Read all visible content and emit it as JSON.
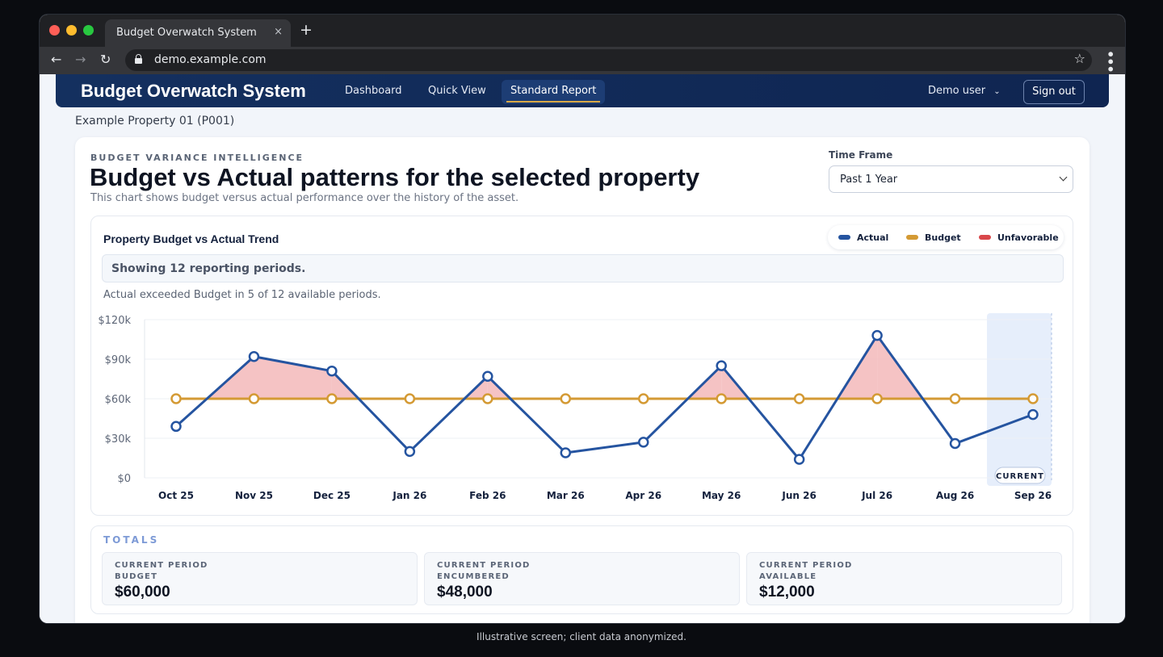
{
  "browser": {
    "tab_title": "Budget Overwatch System",
    "tab_close": "×",
    "new_tab": "+",
    "url": "demo.example.com",
    "back": "←",
    "forward": "→",
    "reload": "↻",
    "star": "☆",
    "menu": "⋮",
    "dot_colors": [
      "#ff5f57",
      "#febc2e",
      "#28c840"
    ]
  },
  "app": {
    "title": "Budget Overwatch System",
    "nav": [
      "Dashboard",
      "Quick View",
      "Standard Report"
    ],
    "active_nav": "Standard Report",
    "user": "Demo user",
    "sign_out": "Sign out"
  },
  "property": "Example Property 01 (P001)",
  "header": {
    "eyebrow": "BUDGET VARIANCE INTELLIGENCE",
    "title": "Budget vs Actual patterns for the selected property",
    "subtitle": "This chart shows budget versus actual performance over the history of the asset."
  },
  "time_frame": {
    "label": "Time Frame",
    "selected": "Past 1 Year"
  },
  "chart_panel": {
    "title": "Property Budget vs Actual Trend",
    "legend": [
      {
        "label": "Actual",
        "color": "#2554a0"
      },
      {
        "label": "Budget",
        "color": "#d49a34"
      },
      {
        "label": "Unfavorable",
        "color": "#d9474a"
      }
    ],
    "periods_text": "Showing 12 reporting periods.",
    "exceeded_text": "Actual exceeded Budget in 5 of 12 available periods.",
    "current_badge": "CURRENT"
  },
  "chart_data": {
    "type": "line",
    "categories": [
      "Oct 25",
      "Nov 25",
      "Dec 25",
      "Jan 26",
      "Feb 26",
      "Mar 26",
      "Apr 26",
      "May 26",
      "Jun 26",
      "Jul 26",
      "Aug 26",
      "Sep 26"
    ],
    "series": [
      {
        "name": "Actual",
        "values": [
          39000,
          92000,
          81000,
          20000,
          77000,
          19000,
          27000,
          85000,
          14000,
          108000,
          26000,
          48000
        ]
      },
      {
        "name": "Budget",
        "values": [
          60000,
          60000,
          60000,
          60000,
          60000,
          60000,
          60000,
          60000,
          60000,
          60000,
          60000,
          60000
        ]
      }
    ],
    "yticks": [
      "$0",
      "$30k",
      "$60k",
      "$90k",
      "$120k"
    ],
    "ylim": [
      0,
      120000
    ],
    "unfavorable_fill": "Actual above Budget",
    "current_period": "Sep 26",
    "grid": true,
    "legend_position": "top-right"
  },
  "totals": {
    "title": "TOTALS",
    "cards": [
      {
        "label_line1": "CURRENT PERIOD",
        "label_line2": "BUDGET",
        "value": "$60,000"
      },
      {
        "label_line1": "CURRENT PERIOD",
        "label_line2": "ENCUMBERED",
        "value": "$48,000"
      },
      {
        "label_line1": "CURRENT PERIOD",
        "label_line2": "AVAILABLE",
        "value": "$12,000"
      }
    ]
  },
  "caption": "Illustrative screen; client data anonymized."
}
